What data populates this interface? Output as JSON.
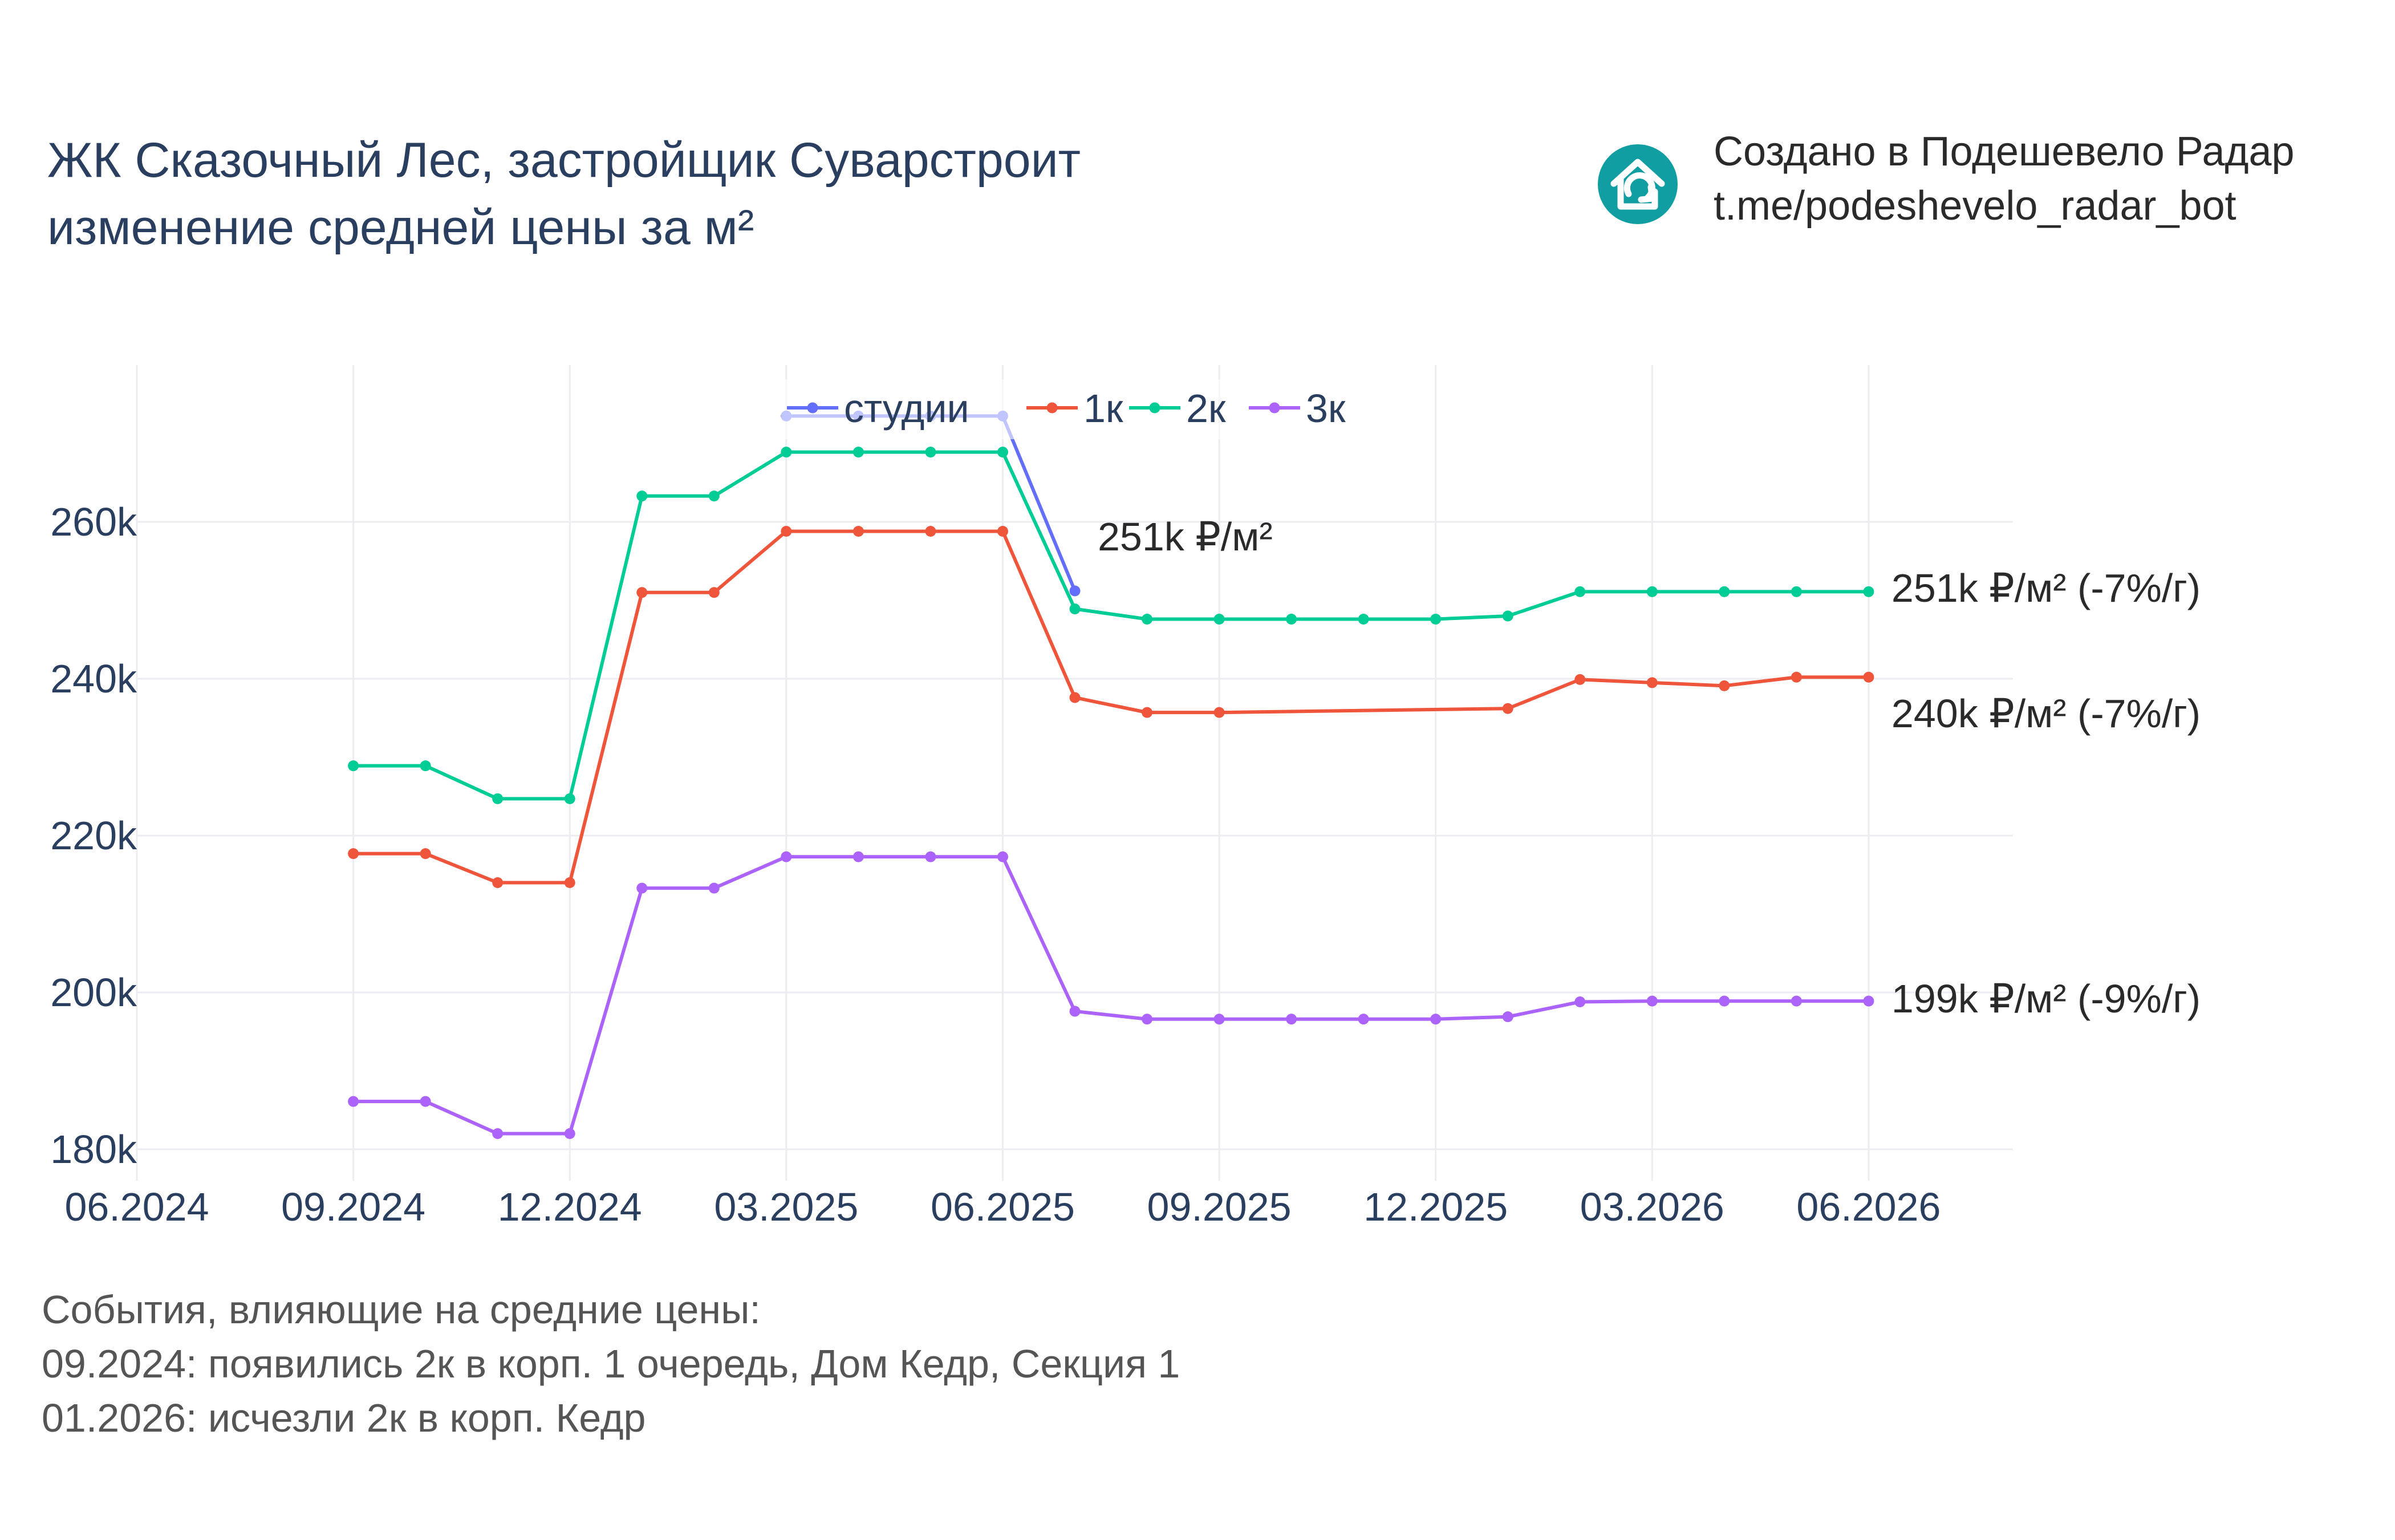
{
  "header": {
    "title_line1": "ЖК Сказочный Лес, застройщик Суварстроит",
    "title_line2": "изменение средней цены за м²",
    "brand_line1": "Создано в Подешевело Радар",
    "brand_line2": "t.me/podeshevelo_radar_bot",
    "brand_icon": "house-arrow-icon",
    "brand_color": "#119ea3"
  },
  "footer": {
    "heading": "События, влияющие на средние цены:",
    "events": [
      "09.2024: появились 2к в корп. 1 очередь, Дом Кедр, Секция 1",
      "01.2026: исчезли 2к в корп. Кедр"
    ]
  },
  "chart_data": {
    "type": "line",
    "x_axis_ticks": [
      "06.2024",
      "09.2024",
      "12.2024",
      "03.2025",
      "06.2025",
      "09.2025",
      "12.2025",
      "03.2026",
      "06.2026"
    ],
    "x_range": [
      "2024-06",
      "2026-08"
    ],
    "y_axis_ticks": [
      "180k",
      "200k",
      "220k",
      "240k",
      "260k"
    ],
    "y_tick_values": [
      180000,
      200000,
      220000,
      240000,
      260000
    ],
    "y_range": [
      176000,
      280000
    ],
    "grid": true,
    "legend_position": "top",
    "series": [
      {
        "name": "студии",
        "color": "#636efa",
        "x": [
          "2025-03",
          "2025-04",
          "2025-05",
          "2025-06",
          "2025-07"
        ],
        "values": [
          273500,
          273500,
          273500,
          273500,
          251200
        ],
        "end_label": "251k ₽/м²"
      },
      {
        "name": "1к",
        "color": "#ef553b",
        "x": [
          "2024-09",
          "2024-10",
          "2024-11",
          "2024-12",
          "2025-01",
          "2025-02",
          "2025-03",
          "2025-04",
          "2025-05",
          "2025-06",
          "2025-07",
          "2025-08",
          "2025-09",
          "2026-01",
          "2026-02",
          "2026-03",
          "2026-04",
          "2026-05",
          "2026-06"
        ],
        "values": [
          217700,
          217700,
          214000,
          214000,
          251000,
          251000,
          258800,
          258800,
          258800,
          258800,
          237600,
          235700,
          235700,
          236200,
          239900,
          239500,
          239100,
          240200,
          240200
        ],
        "end_label": "240k ₽/м² (-7%/г)"
      },
      {
        "name": "2к",
        "color": "#00cc96",
        "x": [
          "2024-09",
          "2024-10",
          "2024-11",
          "2024-12",
          "2025-01",
          "2025-02",
          "2025-03",
          "2025-04",
          "2025-05",
          "2025-06",
          "2025-07",
          "2025-08",
          "2025-09",
          "2025-10",
          "2025-11",
          "2025-12",
          "2026-01",
          "2026-02",
          "2026-03",
          "2026-04",
          "2026-05",
          "2026-06"
        ],
        "values": [
          228900,
          228900,
          224700,
          224700,
          263300,
          263300,
          268900,
          268900,
          268900,
          268900,
          248900,
          247600,
          247600,
          247600,
          247600,
          247600,
          248000,
          251100,
          251100,
          251100,
          251100,
          251100
        ],
        "end_label": "251k ₽/м² (-7%/г)"
      },
      {
        "name": "3к",
        "color": "#ab63fa",
        "x": [
          "2024-09",
          "2024-10",
          "2024-11",
          "2024-12",
          "2025-01",
          "2025-02",
          "2025-03",
          "2025-04",
          "2025-05",
          "2025-06",
          "2025-07",
          "2025-08",
          "2025-09",
          "2025-10",
          "2025-11",
          "2025-12",
          "2026-01",
          "2026-02",
          "2026-03",
          "2026-04",
          "2026-05",
          "2026-06"
        ],
        "values": [
          186100,
          186100,
          182000,
          182000,
          213300,
          213300,
          217300,
          217300,
          217300,
          217300,
          197600,
          196600,
          196600,
          196600,
          196600,
          196600,
          196900,
          198800,
          198900,
          198900,
          198900,
          198900
        ],
        "end_label": "199k ₽/м² (-9%/г)"
      }
    ]
  }
}
